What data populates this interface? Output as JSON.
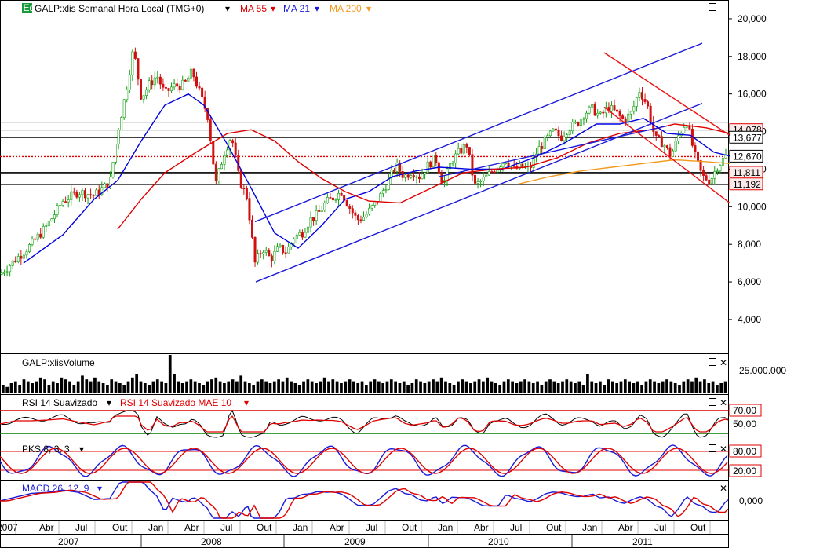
{
  "header": {
    "badge": "Eq",
    "symbol_title": "GALP:xlis Semanal Hora Local (TMG+0)",
    "ma55": "MA 55",
    "ma21": "MA 21",
    "ma200": "MA 200"
  },
  "volume_panel": {
    "title": "GALP:xlisVolume",
    "axis_label": "25.000.000"
  },
  "rsi_panel": {
    "title": "RSI 14 Suavizado",
    "title2": "RSI 14 Suavizado MAE 10",
    "level_high": "70,00",
    "level_mid": "50,00"
  },
  "pks_panel": {
    "title": "PKS 8, 3, 3",
    "level_high": "80,00",
    "level_low": "20,00"
  },
  "macd_panel": {
    "title": "MACD 26, 12, 9",
    "level_zero": "0,000"
  },
  "price_labels": {
    "r1": "14,078",
    "r2": "13,677",
    "last": "12,670",
    "s1": "11,811",
    "s2": "11,192"
  },
  "colors": {
    "ma55": "#e00000",
    "ma21": "#0000e0",
    "ma200": "#f39a1e",
    "up": "#10a010",
    "down": "#d01010",
    "channel": "#1a1ad8",
    "downchannel": "#ee1111",
    "rsi_line": "#000000",
    "rsi_ma": "#e00000",
    "pks_k": "#1a1ad8",
    "pks_d": "#e00000",
    "macd_line": "#1a1ad8",
    "macd_signal": "#e00000",
    "hi_level": "#e00000",
    "lo_level": "#008000"
  },
  "chart_data": {
    "type": "candlestick",
    "title": "GALP:xlis Semanal Hora Local (TMG+0)",
    "y_ticks": [
      "20,000",
      "18,000",
      "16,000",
      "14,000",
      "12,000",
      "10,000",
      "8,000",
      "6,000",
      "4,000"
    ],
    "ylim": [
      2.2,
      21.0
    ],
    "x_month_labels": [
      "2007",
      "Abr",
      "Jul",
      "Out",
      "Jan",
      "Abr",
      "Jul",
      "Out",
      "Jan",
      "Abr",
      "Jul",
      "Out",
      "Jan",
      "Abr",
      "Jul",
      "Out",
      "Jan",
      "Abr",
      "Jul",
      "Out"
    ],
    "x_year_labels": [
      "2007",
      "2008",
      "2009",
      "2010",
      "2011"
    ],
    "price_points": [
      [
        0,
        6.4
      ],
      [
        20,
        7.2
      ],
      [
        40,
        8.0
      ],
      [
        60,
        9.0
      ],
      [
        80,
        10.3
      ],
      [
        100,
        10.8
      ],
      [
        120,
        10.6
      ],
      [
        140,
        11.3
      ],
      [
        150,
        14.0
      ],
      [
        160,
        16.0
      ],
      [
        170,
        18.4
      ],
      [
        180,
        15.8
      ],
      [
        190,
        16.5
      ],
      [
        200,
        17.0
      ],
      [
        210,
        16.0
      ],
      [
        220,
        16.4
      ],
      [
        235,
        16.5
      ],
      [
        245,
        17.2
      ],
      [
        255,
        16.0
      ],
      [
        265,
        14.8
      ],
      [
        275,
        11.2
      ],
      [
        285,
        12.8
      ],
      [
        295,
        13.8
      ],
      [
        305,
        11.4
      ],
      [
        315,
        10.5
      ],
      [
        325,
        7.0
      ],
      [
        335,
        7.8
      ],
      [
        345,
        7.2
      ],
      [
        355,
        7.8
      ],
      [
        365,
        7.6
      ],
      [
        375,
        8.4
      ],
      [
        385,
        8.6
      ],
      [
        395,
        9.3
      ],
      [
        405,
        9.6
      ],
      [
        415,
        10.2
      ],
      [
        425,
        10.5
      ],
      [
        435,
        10.8
      ],
      [
        445,
        10.0
      ],
      [
        455,
        9.3
      ],
      [
        465,
        9.5
      ],
      [
        475,
        10.0
      ],
      [
        485,
        10.6
      ],
      [
        495,
        11.4
      ],
      [
        505,
        12.2
      ],
      [
        515,
        11.6
      ],
      [
        525,
        11.9
      ],
      [
        535,
        11.6
      ],
      [
        545,
        12.2
      ],
      [
        555,
        12.6
      ],
      [
        565,
        11.2
      ],
      [
        575,
        12.4
      ],
      [
        585,
        12.9
      ],
      [
        595,
        13.3
      ],
      [
        605,
        11.1
      ],
      [
        615,
        11.4
      ],
      [
        625,
        11.8
      ],
      [
        635,
        12.2
      ],
      [
        645,
        12.5
      ],
      [
        655,
        12.0
      ],
      [
        665,
        12.1
      ],
      [
        675,
        12.0
      ],
      [
        685,
        13.0
      ],
      [
        695,
        13.5
      ],
      [
        705,
        14.0
      ],
      [
        715,
        13.7
      ],
      [
        725,
        14.2
      ],
      [
        735,
        14.4
      ],
      [
        745,
        15.0
      ],
      [
        755,
        15.2
      ],
      [
        765,
        14.8
      ],
      [
        775,
        15.3
      ],
      [
        785,
        15.0
      ],
      [
        795,
        14.6
      ],
      [
        805,
        15.0
      ],
      [
        815,
        16.2
      ],
      [
        825,
        15.4
      ],
      [
        835,
        13.6
      ],
      [
        845,
        13.4
      ],
      [
        855,
        12.7
      ],
      [
        865,
        13.8
      ],
      [
        875,
        14.6
      ],
      [
        885,
        12.8
      ],
      [
        895,
        11.6
      ],
      [
        905,
        11.4
      ],
      [
        915,
        12.2
      ],
      [
        925,
        12.67
      ]
    ],
    "ma21_points": [
      [
        30,
        7.0
      ],
      [
        80,
        8.5
      ],
      [
        120,
        10.4
      ],
      [
        150,
        11.4
      ],
      [
        180,
        13.5
      ],
      [
        210,
        15.4
      ],
      [
        240,
        16.0
      ],
      [
        260,
        15.4
      ],
      [
        290,
        13.3
      ],
      [
        320,
        11.0
      ],
      [
        350,
        8.6
      ],
      [
        380,
        7.8
      ],
      [
        410,
        9.0
      ],
      [
        440,
        10.4
      ],
      [
        470,
        10.8
      ],
      [
        500,
        11.6
      ],
      [
        530,
        11.9
      ],
      [
        560,
        12.1
      ],
      [
        600,
        12.0
      ],
      [
        640,
        12.0
      ],
      [
        680,
        12.6
      ],
      [
        720,
        13.4
      ],
      [
        760,
        14.4
      ],
      [
        790,
        14.4
      ],
      [
        820,
        14.7
      ],
      [
        850,
        13.9
      ],
      [
        880,
        13.8
      ],
      [
        910,
        12.9
      ],
      [
        930,
        12.7
      ]
    ],
    "ma55_points": [
      [
        150,
        8.8
      ],
      [
        180,
        10.4
      ],
      [
        210,
        11.8
      ],
      [
        250,
        12.9
      ],
      [
        290,
        13.9
      ],
      [
        320,
        14.1
      ],
      [
        350,
        13.5
      ],
      [
        380,
        12.4
      ],
      [
        410,
        11.5
      ],
      [
        440,
        10.8
      ],
      [
        470,
        10.3
      ],
      [
        510,
        10.2
      ],
      [
        550,
        11.0
      ],
      [
        590,
        11.8
      ],
      [
        630,
        12.0
      ],
      [
        670,
        12.1
      ],
      [
        710,
        12.6
      ],
      [
        750,
        13.4
      ],
      [
        790,
        13.9
      ],
      [
        830,
        14.1
      ],
      [
        860,
        14.4
      ],
      [
        900,
        14.2
      ],
      [
        930,
        13.9
      ]
    ],
    "ma200_points": [
      [
        660,
        11.2
      ],
      [
        700,
        11.6
      ],
      [
        740,
        11.9
      ],
      [
        780,
        12.1
      ],
      [
        820,
        12.3
      ],
      [
        860,
        12.5
      ],
      [
        900,
        12.4
      ],
      [
        930,
        12.3
      ]
    ],
    "channel_blue": [
      [
        [
          325,
          9.2
        ],
        [
          895,
          18.7
        ]
      ],
      [
        [
          326,
          6.0
        ],
        [
          895,
          15.5
        ]
      ]
    ],
    "channel_red": [
      [
        [
          770,
          18.2
        ],
        [
          930,
          13.8
        ]
      ],
      [
        [
          770,
          15.3
        ],
        [
          930,
          10.2
        ]
      ]
    ],
    "h_lines": [
      14.5,
      14.078,
      13.677,
      11.811,
      11.192
    ],
    "dotted_level": 12.67,
    "volume": [
      0.2,
      0.15,
      0.25,
      0.3,
      0.2,
      0.35,
      0.3,
      0.25,
      0.3,
      0.4,
      0.35,
      0.2,
      0.3,
      0.25,
      0.4,
      0.35,
      0.3,
      0.2,
      0.3,
      0.45,
      0.35,
      0.3,
      0.4,
      0.3,
      0.25,
      0.2,
      0.35,
      0.3,
      0.25,
      0.2,
      0.3,
      0.4,
      0.5,
      0.3,
      0.25,
      0.2,
      0.3,
      0.35,
      0.3,
      0.25,
      1.0,
      0.5,
      0.3,
      0.25,
      0.3,
      0.35,
      0.3,
      0.25,
      0.2,
      0.3,
      0.35,
      0.4,
      0.3,
      0.25,
      0.3,
      0.35,
      0.3,
      0.45,
      0.3,
      0.25,
      0.2,
      0.3,
      0.35,
      0.3,
      0.25,
      0.3,
      0.35,
      0.3,
      0.4,
      0.3,
      0.25,
      0.2,
      0.3,
      0.35,
      0.3,
      0.25,
      0.3,
      0.4,
      0.3,
      0.35,
      0.3,
      0.25,
      0.3,
      0.35,
      0.3,
      0.25,
      0.3,
      0.2,
      0.3,
      0.35,
      0.3,
      0.25,
      0.3,
      0.35,
      0.3,
      0.25,
      0.3,
      0.2,
      0.25,
      0.35,
      0.3,
      0.25,
      0.3,
      0.35,
      0.3,
      0.4,
      0.3,
      0.25,
      0.2,
      0.3,
      0.35,
      0.3,
      0.25,
      0.3,
      0.35,
      0.3,
      0.4,
      0.3,
      0.25,
      0.2,
      0.3,
      0.35,
      0.3,
      0.25,
      0.3,
      0.35,
      0.3,
      0.25,
      0.3,
      0.2,
      0.3,
      0.35,
      0.3,
      0.25,
      0.3,
      0.35,
      0.3,
      0.25,
      0.3,
      0.2,
      0.5,
      0.3,
      0.25,
      0.3,
      0.2,
      0.35,
      0.3,
      0.25,
      0.3,
      0.35,
      0.3,
      0.25,
      0.3,
      0.2,
      0.3,
      0.35,
      0.3,
      0.25,
      0.3,
      0.35,
      0.3,
      0.25,
      0.2,
      0.3,
      0.35,
      0.3,
      0.4,
      0.3,
      0.35,
      0.25,
      0.3,
      0.2,
      0.25,
      0.3
    ]
  }
}
